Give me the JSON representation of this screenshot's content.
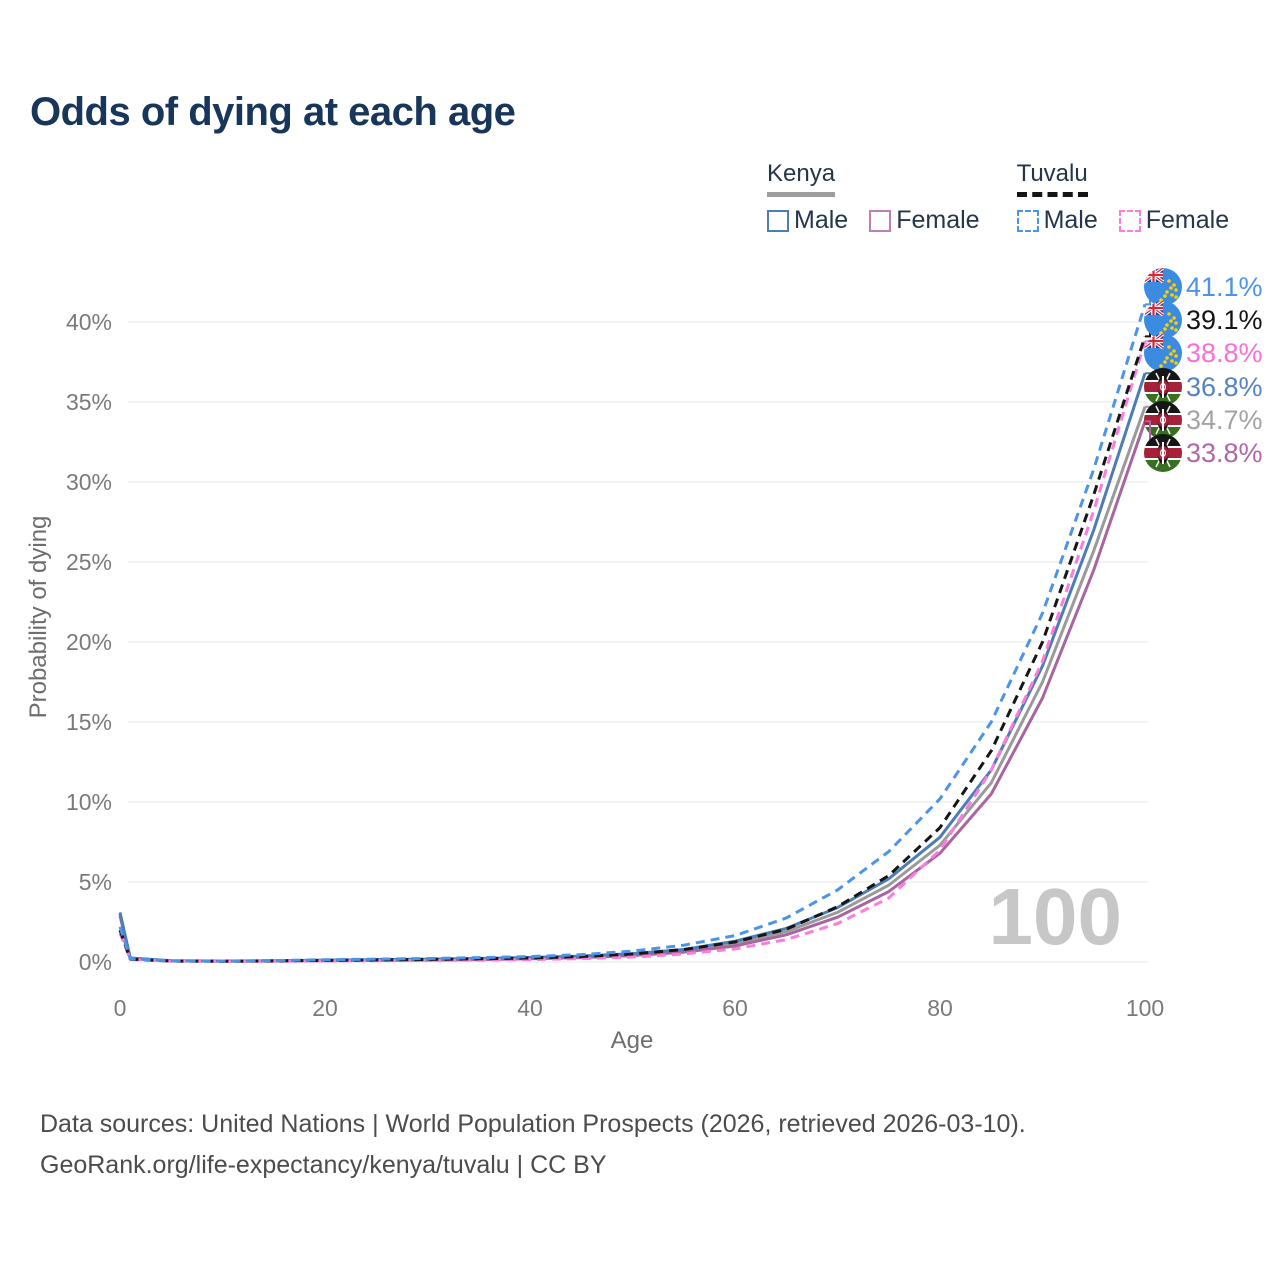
{
  "title": "Odds of dying at each age",
  "legend": {
    "groups": [
      {
        "label": "Kenya",
        "line_style": "solid",
        "underline_color": "#9e9e9e",
        "items": [
          {
            "label": "Male",
            "color": "#4d7db5"
          },
          {
            "label": "Female",
            "color": "#bd7fb4"
          }
        ]
      },
      {
        "label": "Tuvalu",
        "line_style": "dashed",
        "underline_color": "#141414",
        "items": [
          {
            "label": "Male",
            "color": "#4b94ea"
          },
          {
            "label": "Female",
            "color": "#fb7cdd"
          }
        ]
      }
    ]
  },
  "chart_data": {
    "type": "line",
    "title": "Odds of dying at each age",
    "xlabel": "Age",
    "ylabel": "Probability of dying",
    "x_ticks": [
      0,
      20,
      40,
      60,
      80,
      100
    ],
    "y_tick_labels": [
      "0%",
      "5%",
      "10%",
      "15%",
      "20%",
      "25%",
      "30%",
      "35%",
      "40%"
    ],
    "xlim": [
      0,
      100
    ],
    "ylim": [
      0,
      43
    ],
    "grid": true,
    "legend_position": "top-right",
    "watermark": "100",
    "ages": [
      0,
      1,
      5,
      10,
      15,
      20,
      25,
      30,
      35,
      40,
      45,
      50,
      55,
      60,
      65,
      70,
      75,
      80,
      85,
      90,
      95,
      100
    ],
    "series": [
      {
        "name": "Kenya Both sexes",
        "id": "kenya-both",
        "country": "Kenya",
        "sex": "Both",
        "color": "#9a9a9a",
        "dash": "solid",
        "flag": "kenya",
        "icon": "kenya-flag-icon",
        "end_label": "34.7%",
        "label_color": "#a3a3a3",
        "values": [
          3.0,
          0.24,
          0.075,
          0.055,
          0.07,
          0.1,
          0.13,
          0.15,
          0.18,
          0.24,
          0.32,
          0.46,
          0.7,
          1.15,
          1.9,
          3.1,
          4.8,
          7.3,
          11.2,
          17.5,
          25.7,
          34.7
        ]
      },
      {
        "name": "Kenya Female",
        "id": "kenya-female",
        "country": "Kenya",
        "sex": "Female",
        "color": "#a9659f",
        "dash": "solid",
        "flag": "kenya",
        "icon": "kenya-flag-icon",
        "end_label": "33.8%",
        "label_color": "#b166a8",
        "values": [
          2.9,
          0.22,
          0.07,
          0.05,
          0.06,
          0.08,
          0.1,
          0.12,
          0.15,
          0.2,
          0.27,
          0.4,
          0.62,
          1.0,
          1.7,
          2.8,
          4.4,
          6.8,
          10.5,
          16.5,
          24.5,
          33.8
        ]
      },
      {
        "name": "Kenya Male",
        "id": "kenya-male",
        "country": "Kenya",
        "sex": "Male",
        "color": "#4d7db5",
        "dash": "solid",
        "flag": "kenya",
        "icon": "kenya-flag-icon",
        "end_label": "36.8%",
        "label_color": "#5583c0",
        "values": [
          3.1,
          0.25,
          0.08,
          0.06,
          0.08,
          0.12,
          0.15,
          0.18,
          0.22,
          0.28,
          0.37,
          0.52,
          0.78,
          1.3,
          2.1,
          3.4,
          5.2,
          7.8,
          12.0,
          18.5,
          27.0,
          36.8
        ]
      },
      {
        "name": "Tuvalu Female",
        "id": "tuvalu-female",
        "country": "Tuvalu",
        "sex": "Female",
        "color": "#fb7cdd",
        "dash": "dashed",
        "flag": "tuvalu",
        "icon": "tuvalu-flag-icon",
        "end_label": "38.8%",
        "label_color": "#fb6ed8",
        "values": [
          1.8,
          0.16,
          0.05,
          0.04,
          0.05,
          0.07,
          0.08,
          0.1,
          0.12,
          0.15,
          0.21,
          0.31,
          0.5,
          0.82,
          1.4,
          2.4,
          4.0,
          7.0,
          12.0,
          18.8,
          28.2,
          38.8
        ]
      },
      {
        "name": "Tuvalu Both sexes",
        "id": "tuvalu-both",
        "country": "Tuvalu",
        "sex": "Both",
        "color": "#161616",
        "dash": "dashed",
        "flag": "tuvalu",
        "icon": "tuvalu-flag-icon",
        "end_label": "39.1%",
        "label_color": "#141414",
        "values": [
          2.0,
          0.18,
          0.06,
          0.05,
          0.07,
          0.1,
          0.13,
          0.16,
          0.2,
          0.25,
          0.34,
          0.5,
          0.78,
          1.25,
          2.05,
          3.45,
          5.4,
          8.4,
          13.2,
          20.0,
          29.2,
          39.1
        ]
      },
      {
        "name": "Tuvalu Male",
        "id": "tuvalu-male",
        "country": "Tuvalu",
        "sex": "Male",
        "color": "#4b94ea",
        "dash": "dashed",
        "flag": "tuvalu",
        "icon": "tuvalu-flag-icon",
        "end_label": "41.1%",
        "label_color": "#4b94ea",
        "values": [
          2.2,
          0.2,
          0.07,
          0.06,
          0.09,
          0.14,
          0.18,
          0.22,
          0.27,
          0.34,
          0.46,
          0.68,
          1.05,
          1.65,
          2.75,
          4.5,
          6.9,
          10.2,
          15.0,
          21.8,
          30.8,
          41.1
        ]
      }
    ]
  },
  "footer": {
    "line1": "Data sources: United Nations | World Population Prospects (2026, retrieved 2026-03-10).",
    "line2": "GeoRank.org/life-expectancy/kenya/tuvalu | CC BY"
  }
}
